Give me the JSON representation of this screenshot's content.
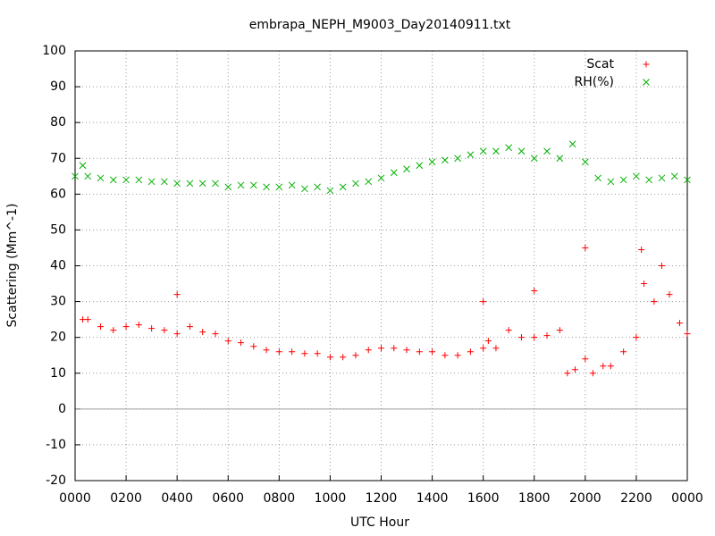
{
  "chart_data": {
    "type": "scatter",
    "title": "embrapa_NEPH_M9003_Day20140911.txt",
    "x_label": "UTC Hour",
    "y_label": "Scattering (Mm^-1)",
    "xlim": [
      0,
      24
    ],
    "xticks": [
      {
        "value": 0,
        "label": "0000"
      },
      {
        "value": 2,
        "label": "0200"
      },
      {
        "value": 4,
        "label": "0400"
      },
      {
        "value": 6,
        "label": "0600"
      },
      {
        "value": 8,
        "label": "0800"
      },
      {
        "value": 10,
        "label": "1000"
      },
      {
        "value": 12,
        "label": "1200"
      },
      {
        "value": 14,
        "label": "1400"
      },
      {
        "value": 16,
        "label": "1600"
      },
      {
        "value": 18,
        "label": "1800"
      },
      {
        "value": 20,
        "label": "2000"
      },
      {
        "value": 22,
        "label": "2200"
      },
      {
        "value": 24,
        "label": "0000"
      }
    ],
    "ylim": [
      -20,
      100
    ],
    "yticks": [
      -20,
      -10,
      0,
      10,
      20,
      30,
      40,
      50,
      60,
      70,
      80,
      90,
      100
    ],
    "grid": true,
    "legend": "top-right",
    "series": [
      {
        "name": "Scat",
        "color": "#ff0000",
        "marker": "plus",
        "x": [
          0.3,
          0.5,
          1,
          1.5,
          2,
          2.5,
          3,
          3.5,
          4,
          4.5,
          5,
          5.5,
          6,
          6.5,
          7,
          7.5,
          8,
          8.5,
          9,
          9.5,
          10,
          10.5,
          11,
          11.5,
          12,
          12.5,
          13,
          13.5,
          14,
          14.5,
          15,
          15.5,
          16,
          16.2,
          16.5,
          17,
          17.5,
          18,
          18.5,
          19,
          19.3,
          19.6,
          20,
          20.3,
          20.7,
          21,
          21.5,
          22,
          22.3,
          22.7,
          23,
          23.3,
          23.7,
          24,
          4,
          16,
          18,
          20,
          22.2
        ],
        "values": [
          25,
          25,
          23,
          22,
          23,
          23.5,
          22.5,
          22,
          21,
          23,
          21.5,
          21,
          19,
          18.5,
          17.5,
          16.5,
          16,
          16,
          15.5,
          15.5,
          14.5,
          14.5,
          15,
          16.5,
          17,
          17,
          16.5,
          16,
          16,
          15,
          15,
          16,
          17,
          19,
          17,
          22,
          20,
          20,
          20.5,
          22,
          10,
          11,
          14,
          10,
          12,
          12,
          16,
          20,
          35,
          30,
          40,
          32,
          24,
          21,
          32,
          30,
          33,
          45,
          44.5
        ]
      },
      {
        "name": "RH(%)",
        "color": "#00b000",
        "marker": "cross",
        "x": [
          0,
          0.3,
          0.5,
          1,
          1.5,
          2,
          2.5,
          3,
          3.5,
          4,
          4.5,
          5,
          5.5,
          6,
          6.5,
          7,
          7.5,
          8,
          8.5,
          9,
          9.5,
          10,
          10.5,
          11,
          11.5,
          12,
          12.5,
          13,
          13.5,
          14,
          14.5,
          15,
          15.5,
          16,
          16.5,
          17,
          17.5,
          18,
          18.5,
          19,
          19.5,
          20,
          20.5,
          21,
          21.5,
          22,
          22.5,
          23,
          23.5,
          24
        ],
        "values": [
          65,
          68,
          65,
          64.5,
          64,
          64,
          64,
          63.5,
          63.5,
          63,
          63,
          63,
          63,
          62,
          62.5,
          62.5,
          62,
          62,
          62.5,
          61.5,
          62,
          61,
          62,
          63,
          63.5,
          64.5,
          66,
          67,
          68,
          69,
          69.5,
          70,
          71,
          72,
          72,
          73,
          72,
          70,
          72,
          70,
          74,
          69,
          64.5,
          63.5,
          64,
          65,
          64,
          64.5,
          65,
          64
        ]
      }
    ]
  }
}
